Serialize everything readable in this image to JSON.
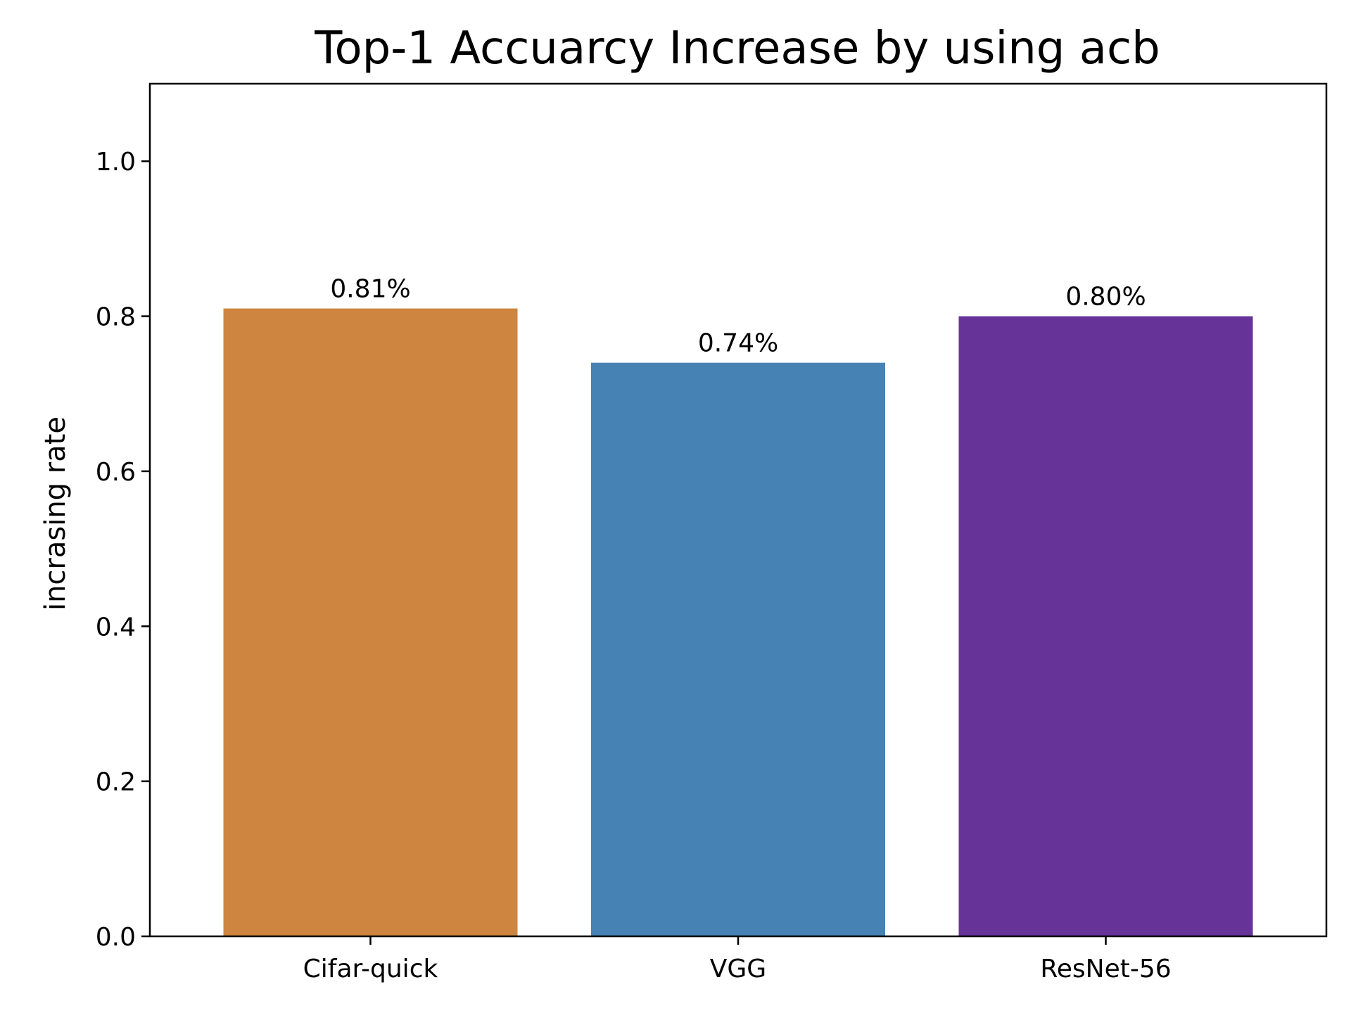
{
  "chart_data": {
    "type": "bar",
    "title": "Top-1 Accuarcy Increase by using acb",
    "xlabel": "",
    "ylabel": "incrasing rate",
    "categories": [
      "Cifar-quick",
      "VGG",
      "ResNet-56"
    ],
    "values": [
      0.81,
      0.74,
      0.8
    ],
    "data_labels": [
      "0.81%",
      "0.74%",
      "0.80%"
    ],
    "colors": [
      "#cd853f",
      "#4682b4",
      "#663399"
    ],
    "ylim": [
      0,
      1.1
    ],
    "yticks": [
      0.0,
      0.2,
      0.4,
      0.6,
      0.8,
      1.0
    ],
    "ytick_labels": [
      "0.0",
      "0.2",
      "0.4",
      "0.6",
      "0.8",
      "1.0"
    ],
    "grid": false,
    "legend": "none"
  }
}
